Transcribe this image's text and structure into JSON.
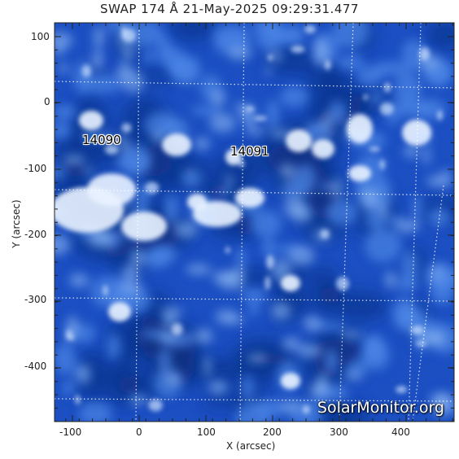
{
  "title": "SWAP 174 Å 21-May-2025 09:29:31.477",
  "xlabel": "X (arcsec)",
  "ylabel": "Y (arcsec)",
  "x_ticks": [
    "-100",
    "0",
    "100",
    "200",
    "300",
    "400"
  ],
  "y_ticks": [
    "100",
    "0",
    "-100",
    "-200",
    "-300",
    "-400"
  ],
  "active_regions": [
    {
      "label": "14090"
    },
    {
      "label": "14091"
    }
  ],
  "watermark": "SolarMonitor.org",
  "colors": {
    "base": "#1b4fc2",
    "bright": "#ffffff",
    "dark": "#0a2b7a",
    "axis": "#222222"
  }
}
